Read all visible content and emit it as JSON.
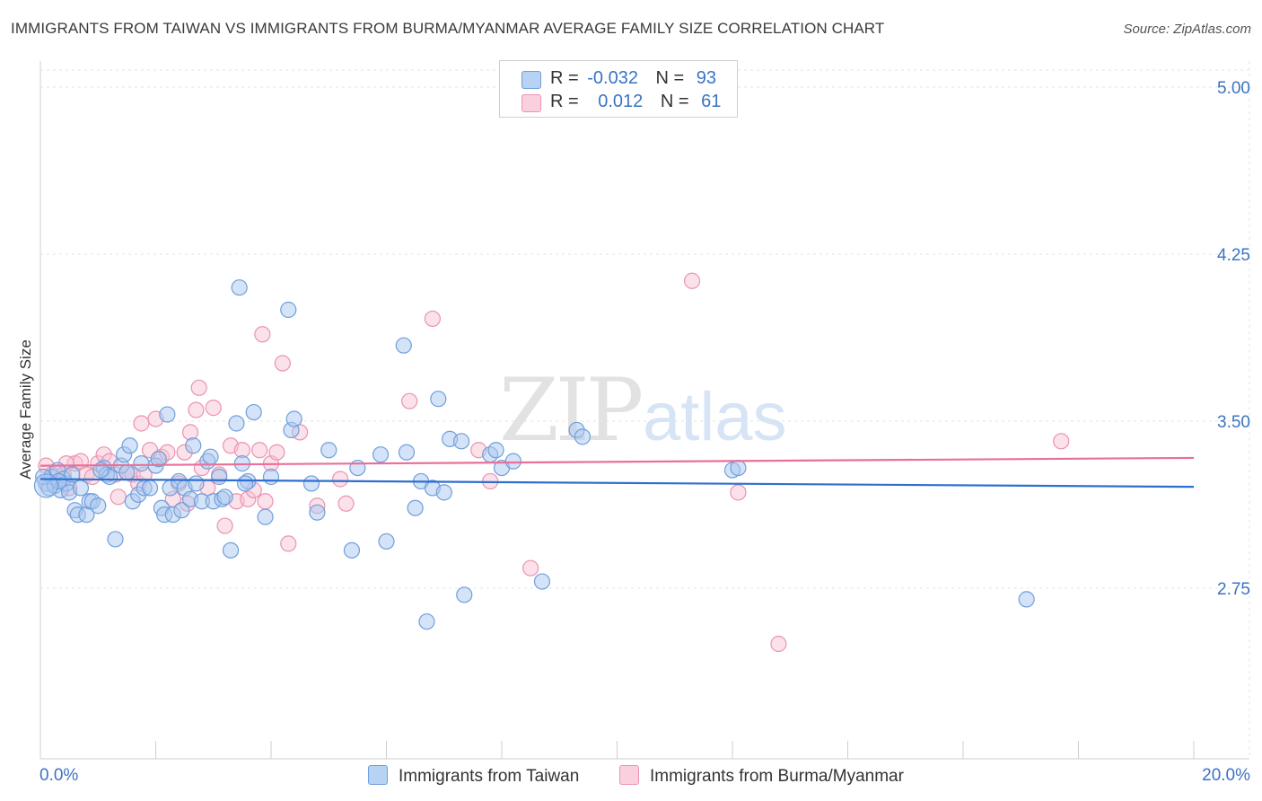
{
  "title": "IMMIGRANTS FROM TAIWAN VS IMMIGRANTS FROM BURMA/MYANMAR AVERAGE FAMILY SIZE CORRELATION CHART",
  "source": "Source: ZipAtlas.com",
  "watermark": {
    "zip": "ZIP",
    "atlas": "atlas"
  },
  "legend": {
    "rows": [
      {
        "r_label": "R =",
        "r_value": "-0.032",
        "n_label": "N =",
        "n_value": "93"
      },
      {
        "r_label": "R =",
        "r_value": "0.012",
        "n_label": "N =",
        "n_value": "61"
      }
    ]
  },
  "colors": {
    "taiwan_fill": "#a9c8f0",
    "taiwan_stroke": "#6f9fdc",
    "taiwan_line": "#2f6fcf",
    "burma_fill": "#f8c3d4",
    "burma_stroke": "#eb93b1",
    "burma_line": "#e8709a",
    "tick_text": "#3b73c4"
  },
  "chart_data": {
    "type": "scatter",
    "title": "IMMIGRANTS FROM TAIWAN VS IMMIGRANTS FROM BURMA/MYANMAR AVERAGE FAMILY SIZE CORRELATION CHART",
    "xlabel": "",
    "ylabel": "Average Family Size",
    "xlim": [
      0,
      20
    ],
    "ylim": [
      2.0,
      5.1
    ],
    "x_tick_labels": [
      "0.0%",
      "20.0%"
    ],
    "y_ticks": [
      2.75,
      3.5,
      4.25,
      5.0
    ],
    "y_tick_labels": [
      "2.75",
      "3.50",
      "4.25",
      "5.00"
    ],
    "grid": true,
    "legend_position": "bottom",
    "series": [
      {
        "name": "Immigrants from Taiwan",
        "r": -0.032,
        "n": 93,
        "trend": {
          "x": [
            0,
            20
          ],
          "y": [
            3.24,
            3.205
          ]
        },
        "points": [
          [
            0.1,
            3.22
          ],
          [
            0.15,
            3.2
          ],
          [
            0.2,
            3.25
          ],
          [
            0.25,
            3.21
          ],
          [
            0.3,
            3.28
          ],
          [
            0.35,
            3.19
          ],
          [
            0.4,
            3.24
          ],
          [
            0.45,
            3.22
          ],
          [
            0.5,
            3.18
          ],
          [
            0.6,
            3.1
          ],
          [
            0.65,
            3.08
          ],
          [
            0.7,
            3.2
          ],
          [
            0.8,
            3.08
          ],
          [
            0.85,
            3.14
          ],
          [
            0.9,
            3.14
          ],
          [
            1.0,
            3.12
          ],
          [
            1.1,
            3.29
          ],
          [
            1.15,
            3.26
          ],
          [
            1.2,
            3.25
          ],
          [
            1.3,
            2.97
          ],
          [
            1.4,
            3.3
          ],
          [
            1.45,
            3.35
          ],
          [
            1.5,
            3.27
          ],
          [
            1.55,
            3.39
          ],
          [
            1.6,
            3.14
          ],
          [
            1.7,
            3.17
          ],
          [
            1.8,
            3.2
          ],
          [
            1.9,
            3.2
          ],
          [
            2.0,
            3.3
          ],
          [
            2.05,
            3.33
          ],
          [
            2.1,
            3.11
          ],
          [
            2.15,
            3.08
          ],
          [
            2.2,
            3.53
          ],
          [
            2.25,
            3.2
          ],
          [
            2.3,
            3.08
          ],
          [
            2.4,
            3.23
          ],
          [
            2.45,
            3.1
          ],
          [
            2.5,
            3.2
          ],
          [
            2.6,
            3.15
          ],
          [
            2.65,
            3.39
          ],
          [
            2.8,
            3.14
          ],
          [
            2.9,
            3.32
          ],
          [
            2.95,
            3.34
          ],
          [
            3.0,
            3.14
          ],
          [
            3.1,
            3.25
          ],
          [
            3.15,
            3.15
          ],
          [
            3.2,
            3.16
          ],
          [
            3.3,
            2.92
          ],
          [
            3.4,
            3.49
          ],
          [
            3.45,
            4.1
          ],
          [
            3.5,
            3.31
          ],
          [
            3.6,
            3.23
          ],
          [
            3.7,
            3.54
          ],
          [
            3.9,
            3.07
          ],
          [
            4.0,
            3.25
          ],
          [
            4.3,
            4.0
          ],
          [
            4.35,
            3.46
          ],
          [
            4.4,
            3.51
          ],
          [
            4.7,
            3.22
          ],
          [
            4.8,
            3.09
          ],
          [
            5.0,
            3.37
          ],
          [
            5.4,
            2.92
          ],
          [
            5.5,
            3.29
          ],
          [
            5.9,
            3.35
          ],
          [
            6.0,
            2.96
          ],
          [
            6.3,
            3.84
          ],
          [
            6.35,
            3.36
          ],
          [
            6.5,
            3.11
          ],
          [
            6.6,
            3.23
          ],
          [
            6.7,
            2.6
          ],
          [
            6.8,
            3.2
          ],
          [
            6.9,
            3.6
          ],
          [
            7.0,
            3.18
          ],
          [
            7.1,
            3.42
          ],
          [
            7.3,
            3.41
          ],
          [
            7.35,
            2.72
          ],
          [
            7.8,
            3.35
          ],
          [
            7.9,
            3.37
          ],
          [
            8.0,
            3.29
          ],
          [
            8.2,
            3.32
          ],
          [
            8.7,
            2.78
          ],
          [
            9.3,
            3.46
          ],
          [
            9.4,
            3.43
          ],
          [
            12.0,
            3.28
          ],
          [
            12.1,
            3.29
          ],
          [
            17.1,
            2.7
          ],
          [
            0.05,
            3.25
          ],
          [
            0.55,
            3.26
          ],
          [
            1.75,
            3.31
          ],
          [
            2.7,
            3.22
          ],
          [
            3.55,
            3.22
          ],
          [
            0.32,
            3.23
          ],
          [
            1.05,
            3.28
          ]
        ]
      },
      {
        "name": "Immigrants from Burma/Myanmar",
        "r": 0.012,
        "n": 61,
        "trend": {
          "x": [
            0,
            20
          ],
          "y": [
            3.3,
            3.335
          ]
        },
        "points": [
          [
            0.1,
            3.3
          ],
          [
            0.2,
            3.26
          ],
          [
            0.3,
            3.23
          ],
          [
            0.4,
            3.26
          ],
          [
            0.5,
            3.2
          ],
          [
            0.6,
            3.31
          ],
          [
            0.7,
            3.32
          ],
          [
            0.8,
            3.26
          ],
          [
            0.9,
            3.25
          ],
          [
            1.0,
            3.31
          ],
          [
            1.1,
            3.35
          ],
          [
            1.2,
            3.32
          ],
          [
            1.3,
            3.26
          ],
          [
            1.35,
            3.16
          ],
          [
            1.5,
            3.27
          ],
          [
            1.6,
            3.26
          ],
          [
            1.7,
            3.22
          ],
          [
            1.75,
            3.49
          ],
          [
            1.8,
            3.26
          ],
          [
            1.9,
            3.37
          ],
          [
            2.0,
            3.51
          ],
          [
            2.1,
            3.34
          ],
          [
            2.2,
            3.36
          ],
          [
            2.3,
            3.15
          ],
          [
            2.4,
            3.22
          ],
          [
            2.5,
            3.36
          ],
          [
            2.55,
            3.13
          ],
          [
            2.6,
            3.45
          ],
          [
            2.7,
            3.55
          ],
          [
            2.75,
            3.65
          ],
          [
            2.8,
            3.29
          ],
          [
            2.9,
            3.2
          ],
          [
            3.0,
            3.56
          ],
          [
            3.1,
            3.26
          ],
          [
            3.2,
            3.03
          ],
          [
            3.3,
            3.39
          ],
          [
            3.4,
            3.14
          ],
          [
            3.5,
            3.37
          ],
          [
            3.6,
            3.15
          ],
          [
            3.7,
            3.19
          ],
          [
            3.8,
            3.37
          ],
          [
            3.85,
            3.89
          ],
          [
            3.9,
            3.14
          ],
          [
            4.0,
            3.31
          ],
          [
            4.1,
            3.36
          ],
          [
            4.2,
            3.76
          ],
          [
            4.3,
            2.95
          ],
          [
            4.5,
            3.45
          ],
          [
            4.8,
            3.12
          ],
          [
            5.2,
            3.24
          ],
          [
            5.3,
            3.13
          ],
          [
            6.4,
            3.59
          ],
          [
            6.8,
            3.96
          ],
          [
            7.6,
            3.37
          ],
          [
            7.8,
            3.23
          ],
          [
            8.5,
            2.84
          ],
          [
            11.3,
            4.13
          ],
          [
            12.1,
            3.18
          ],
          [
            12.8,
            2.5
          ],
          [
            17.7,
            3.41
          ],
          [
            0.45,
            3.31
          ]
        ]
      }
    ]
  }
}
